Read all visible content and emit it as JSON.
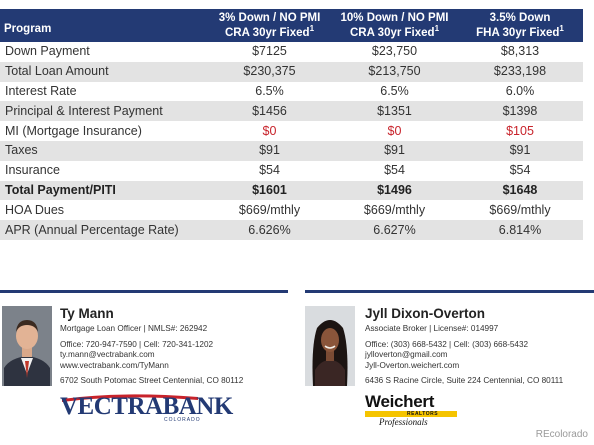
{
  "table": {
    "header": {
      "program": "Program",
      "columns": [
        {
          "line1": "3% Down / NO PMI",
          "line2": "CRA 30yr Fixed",
          "footnote": "1"
        },
        {
          "line1": "10% Down / NO PMI",
          "line2": "CRA 30yr Fixed",
          "footnote": "1"
        },
        {
          "line1": "3.5% Down",
          "line2": "FHA 30yr Fixed",
          "footnote": "1"
        }
      ]
    },
    "rows": [
      {
        "label": "Down Payment",
        "values": [
          "$7125",
          "$23,750",
          "$8,313"
        ]
      },
      {
        "label": "Total Loan Amount",
        "values": [
          "$230,375",
          "$213,750",
          "$233,198"
        ]
      },
      {
        "label": "Interest Rate",
        "values": [
          "6.5%",
          "6.5%",
          "6.0%"
        ]
      },
      {
        "label": "Principal & Interest Payment",
        "values": [
          "$1456",
          "$1351",
          "$1398"
        ]
      },
      {
        "label": "MI (Mortgage Insurance)",
        "values": [
          "$0",
          "$0",
          "$105"
        ]
      },
      {
        "label": "Taxes",
        "values": [
          "$91",
          "$91",
          "$91"
        ]
      },
      {
        "label": "Insurance",
        "values": [
          "$54",
          "$54",
          "$54"
        ]
      },
      {
        "label": "Total Payment/PITI",
        "values": [
          "$1601",
          "$1496",
          "$1648"
        ]
      },
      {
        "label": "HOA Dues",
        "values": [
          "$669/mthly",
          "$669/mthly",
          "$669/mthly"
        ]
      },
      {
        "label": "APR (Annual Percentage Rate)",
        "values": [
          "6.626%",
          "6.627%",
          "6.814%"
        ]
      }
    ]
  },
  "agents": [
    {
      "name": "Ty Mann",
      "title": "Mortgage Loan Officer | NMLS#: 262942",
      "phones": "Office: 720-947-7590 | Cell: 720-341-1202",
      "email": "ty.mann@vectrabank.com",
      "website": "www.vectrabank.com/TyMann",
      "address": "6702 South Potomac Street Centennial, CO 80112",
      "logo": {
        "word1": "VECTRA",
        "word2": "BANK",
        "sub": "COLORADO"
      }
    },
    {
      "name": "Jyll Dixon-Overton",
      "title": "Associate Broker | License#: 014997",
      "phones": "Office: (303) 668-5432 | Cell: (303) 668-5432",
      "email": "jylloverton@gmail.com",
      "website": "Jyll-Overton.weichert.com",
      "address": "6436 S Racine Circle, Suite 224 Centennial, CO 80111",
      "logo": {
        "word1": "Weichert",
        "sub": "REALTORS",
        "tagline": "Professionals"
      }
    }
  ],
  "credit": "REcolorado",
  "colors": {
    "header_bg": "#233a74",
    "row_shade": "#e3e3e3",
    "highlight_red": "#c8232b",
    "weichert_yellow": "#f5c400"
  }
}
